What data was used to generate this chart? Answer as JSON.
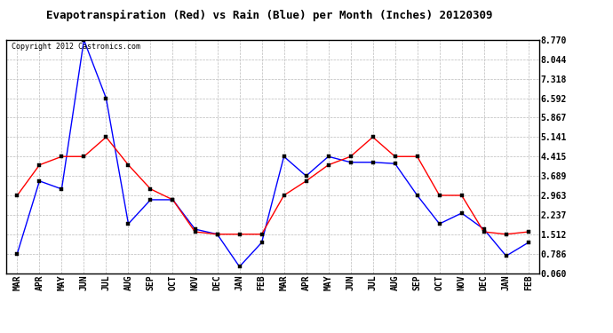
{
  "title": "Evapotranspiration (Red) vs Rain (Blue) per Month (Inches) 20120309",
  "copyright": "Copyright 2012 Castronics.com",
  "months": [
    "MAR",
    "APR",
    "MAY",
    "JUN",
    "JUL",
    "AUG",
    "SEP",
    "OCT",
    "NOV",
    "DEC",
    "JAN",
    "FEB",
    "MAR",
    "APR",
    "MAY",
    "JUN",
    "JUL",
    "AUG",
    "SEP",
    "OCT",
    "NOV",
    "DEC",
    "JAN",
    "FEB"
  ],
  "blue_rain": [
    0.786,
    3.5,
    3.2,
    8.77,
    6.592,
    1.9,
    2.8,
    2.8,
    1.7,
    1.512,
    0.3,
    1.2,
    4.415,
    3.689,
    4.415,
    4.2,
    4.2,
    4.15,
    2.963,
    1.9,
    2.3,
    1.7,
    0.7,
    1.2
  ],
  "red_et": [
    2.963,
    4.1,
    4.415,
    4.415,
    5.141,
    4.1,
    3.2,
    2.8,
    1.6,
    1.512,
    1.512,
    1.512,
    2.963,
    3.5,
    4.1,
    4.415,
    5.141,
    4.415,
    4.415,
    2.963,
    2.963,
    1.6,
    1.512,
    1.6
  ],
  "yticks": [
    0.06,
    0.786,
    1.512,
    2.237,
    2.963,
    3.689,
    4.415,
    5.141,
    5.867,
    6.592,
    7.318,
    8.044,
    8.77
  ],
  "ymin": 0.06,
  "ymax": 8.77,
  "blue_color": "#0000FF",
  "red_color": "#FF0000",
  "bg_color": "#FFFFFF",
  "grid_color": "#BBBBBB",
  "title_fontsize": 9,
  "tick_fontsize": 7,
  "copyright_fontsize": 6
}
